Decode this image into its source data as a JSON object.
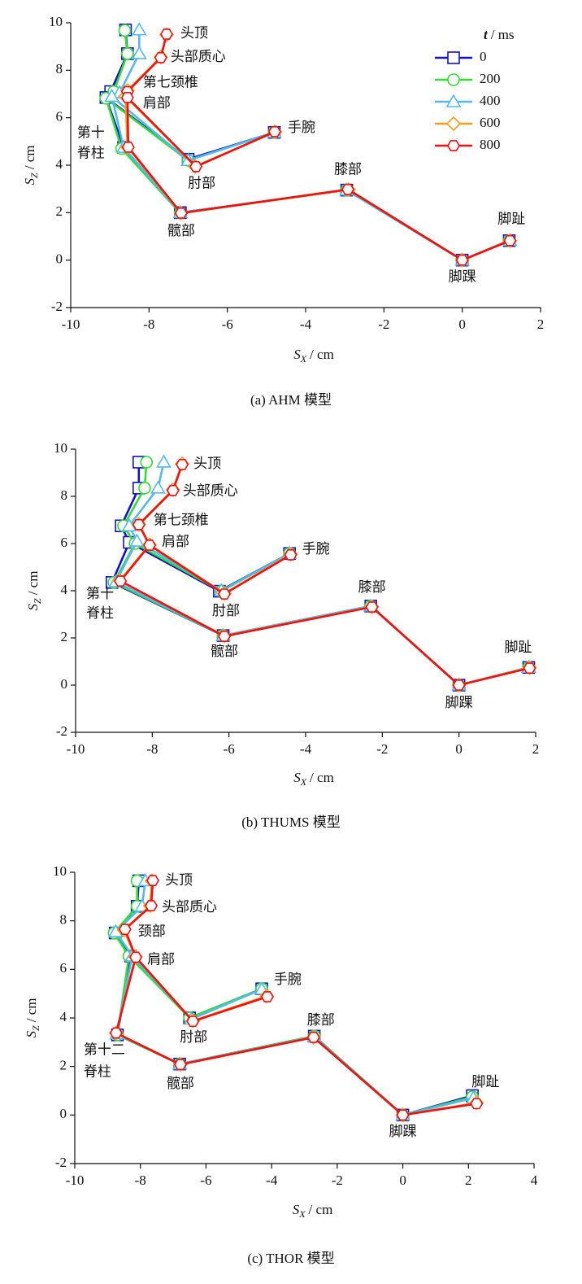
{
  "chart_data": [
    {
      "type": "line",
      "caption": "(a) AHM 模型",
      "xlabel_symbol": "S",
      "xlabel_sub": "X",
      "xlabel_unit": "/ cm",
      "ylabel_symbol": "S",
      "ylabel_sub": "Z",
      "ylabel_unit": "/ cm",
      "xlim": [
        -10,
        2
      ],
      "xticks": [
        -10,
        -8,
        -6,
        -4,
        -2,
        0,
        2
      ],
      "ylim": [
        -2,
        10
      ],
      "yticks": [
        -2,
        0,
        2,
        4,
        6,
        8,
        10
      ],
      "legend_title_symbol": "t",
      "legend_title_unit": "/ ms",
      "legend": "upper right",
      "point_labels": [
        "头顶",
        "头部质心",
        "第七颈椎",
        "肩部",
        [
          "第十",
          "脊柱"
        ],
        "髋部",
        "膝部",
        "脚踝",
        "脚趾",
        "肘部",
        "手腕"
      ],
      "series": [
        {
          "name": "0",
          "color": "#1111cc",
          "marker": "square",
          "x": [
            -8.6,
            -8.55,
            -8.98,
            -9.1,
            -8.65,
            -7.2,
            -2.95,
            0,
            1.2,
            -7.0,
            -4.8
          ],
          "values": [
            9.7,
            8.7,
            7.1,
            6.85,
            4.75,
            2.0,
            2.95,
            0,
            0.82,
            4.25,
            5.38
          ]
        },
        {
          "name": "200",
          "color": "#33dd33",
          "marker": "circle",
          "x": [
            -8.62,
            -8.55,
            -8.9,
            -9.1,
            -8.7,
            -7.2,
            -2.95,
            0,
            1.2,
            -7.0,
            -4.8
          ],
          "values": [
            9.68,
            8.7,
            7.1,
            6.82,
            4.7,
            1.98,
            2.95,
            0,
            0.82,
            4.2,
            5.38
          ]
        },
        {
          "name": "400",
          "color": "#55b8ee",
          "marker": "triangle",
          "x": [
            -8.25,
            -8.25,
            -8.75,
            -8.95,
            -8.65,
            -7.2,
            -2.95,
            0,
            1.22,
            -7.0,
            -4.8
          ],
          "values": [
            9.7,
            8.7,
            7.05,
            6.9,
            4.75,
            2.0,
            2.95,
            0,
            0.82,
            4.2,
            5.38
          ]
        },
        {
          "name": "600",
          "color": "#f39c1f",
          "marker": "diamond",
          "x": [
            -7.55,
            -7.7,
            -8.55,
            -8.6,
            -8.55,
            -7.18,
            -2.9,
            0,
            1.22,
            -6.82,
            -4.78
          ],
          "values": [
            9.5,
            8.55,
            7.15,
            6.9,
            4.76,
            1.98,
            2.97,
            0,
            0.82,
            3.95,
            5.4
          ]
        },
        {
          "name": "800",
          "color": "#ee1111",
          "marker": "hexagon",
          "x": [
            -7.55,
            -7.7,
            -8.55,
            -8.55,
            -8.53,
            -7.18,
            -2.92,
            0,
            1.22,
            -6.8,
            -4.79
          ],
          "values": [
            9.52,
            8.53,
            7.1,
            6.85,
            4.76,
            1.98,
            2.98,
            0,
            0.82,
            3.94,
            5.41
          ]
        }
      ]
    },
    {
      "type": "line",
      "caption": "(b) THUMS 模型",
      "xlabel_symbol": "S",
      "xlabel_sub": "X",
      "xlabel_unit": "/ cm",
      "ylabel_symbol": "S",
      "ylabel_sub": "Z",
      "ylabel_unit": "/ cm",
      "xlim": [
        -10,
        2
      ],
      "xticks": [
        -10,
        -8,
        -6,
        -4,
        -2,
        0,
        2
      ],
      "ylim": [
        -2,
        10
      ],
      "yticks": [
        -2,
        0,
        2,
        4,
        6,
        8,
        10
      ],
      "point_labels": [
        "头顶",
        "头部质心",
        "第七颈椎",
        "肩部",
        [
          "第十",
          "脊柱"
        ],
        "髋部",
        "膝部",
        "脚踝",
        "脚趾",
        "肘部",
        "手腕"
      ],
      "series": [
        {
          "color": "#1111cc",
          "marker": "square",
          "x": [
            -8.35,
            -8.35,
            -8.81,
            -8.6,
            -9.05,
            -6.15,
            -2.3,
            0,
            1.82,
            -6.25,
            -4.42
          ],
          "values": [
            9.45,
            8.35,
            6.75,
            6.05,
            4.35,
            2.1,
            3.35,
            0,
            0.75,
            3.98,
            5.58
          ]
        },
        {
          "color": "#33dd33",
          "marker": "circle",
          "x": [
            -8.15,
            -8.2,
            -8.75,
            -8.45,
            -9.0,
            -6.15,
            -2.3,
            0,
            1.82,
            -6.2,
            -4.42
          ],
          "values": [
            9.45,
            8.35,
            6.75,
            6.0,
            4.35,
            2.1,
            3.35,
            0,
            0.75,
            3.98,
            5.58
          ]
        },
        {
          "color": "#55b8ee",
          "marker": "triangle",
          "x": [
            -7.7,
            -7.85,
            -8.6,
            -8.4,
            -8.95,
            -6.15,
            -2.3,
            0,
            1.82,
            -6.2,
            -4.42
          ],
          "values": [
            9.45,
            8.35,
            6.75,
            6.1,
            4.38,
            2.1,
            3.35,
            0,
            0.75,
            4.0,
            5.58
          ]
        },
        {
          "color": "#f39c1f",
          "marker": "diamond",
          "x": [
            -7.22,
            -7.46,
            -8.35,
            -8.07,
            -8.85,
            -6.12,
            -2.27,
            0,
            1.84,
            -6.12,
            -4.39
          ],
          "values": [
            9.38,
            8.28,
            6.82,
            5.95,
            4.43,
            2.08,
            3.32,
            0,
            0.74,
            3.88,
            5.55
          ]
        },
        {
          "color": "#ee1111",
          "marker": "hexagon",
          "x": [
            -7.22,
            -7.46,
            -8.35,
            -8.07,
            -8.83,
            -6.12,
            -2.27,
            0,
            1.84,
            -6.12,
            -4.39
          ],
          "values": [
            9.35,
            8.25,
            6.8,
            5.93,
            4.41,
            2.07,
            3.31,
            0,
            0.72,
            3.86,
            5.52
          ]
        }
      ]
    },
    {
      "type": "line",
      "caption": "(c) THOR 模型",
      "xlabel_symbol": "S",
      "xlabel_sub": "X",
      "xlabel_unit": "/ cm",
      "ylabel_symbol": "S",
      "ylabel_sub": "Z",
      "ylabel_unit": "/ cm",
      "xlim": [
        -10,
        4
      ],
      "xticks": [
        -10,
        -8,
        -6,
        -4,
        -2,
        0,
        2,
        4
      ],
      "ylim": [
        -2,
        10
      ],
      "yticks": [
        -2,
        0,
        2,
        4,
        6,
        8,
        10
      ],
      "point_labels": [
        "头顶",
        "头部质心",
        "颈部",
        "肩部",
        [
          "第十二",
          "脊柱"
        ],
        "髋部",
        "膝部",
        "脚踝",
        "脚趾",
        "肘部",
        "手腕"
      ],
      "series": [
        {
          "color": "#1111cc",
          "marker": "square",
          "x": [
            -8.05,
            -8.1,
            -8.77,
            -8.3,
            -8.7,
            -6.8,
            -2.7,
            0,
            2.12,
            -6.5,
            -4.3
          ],
          "values": [
            9.65,
            8.6,
            7.5,
            6.55,
            3.3,
            2.1,
            3.25,
            0,
            0.8,
            4.0,
            5.2
          ]
        },
        {
          "color": "#33dd33",
          "marker": "circle",
          "x": [
            -8.1,
            -8.1,
            -8.8,
            -8.35,
            -8.7,
            -6.8,
            -2.7,
            0,
            2.12,
            -6.5,
            -4.3
          ],
          "values": [
            9.65,
            8.6,
            7.5,
            6.55,
            3.3,
            2.1,
            3.25,
            0,
            0.75,
            4.0,
            5.2
          ]
        },
        {
          "color": "#55b8ee",
          "marker": "triangle",
          "x": [
            -7.85,
            -7.95,
            -8.75,
            -8.25,
            -8.72,
            -6.8,
            -2.7,
            0,
            2.15,
            -6.45,
            -4.3
          ],
          "values": [
            9.65,
            8.6,
            7.55,
            6.55,
            3.35,
            2.1,
            3.22,
            0,
            0.7,
            3.95,
            5.18
          ]
        },
        {
          "color": "#f39c1f",
          "marker": "diamond",
          "x": [
            -7.65,
            -7.7,
            -8.5,
            -8.15,
            -8.74,
            -6.78,
            -2.72,
            0,
            2.25,
            -6.4,
            -4.15
          ],
          "values": [
            9.65,
            8.62,
            7.62,
            6.52,
            3.38,
            2.08,
            3.2,
            0,
            0.5,
            3.88,
            4.9
          ]
        },
        {
          "color": "#ee1111",
          "marker": "hexagon",
          "x": [
            -7.62,
            -7.67,
            -8.47,
            -8.14,
            -8.74,
            -6.78,
            -2.72,
            0,
            2.25,
            -6.4,
            -4.13
          ],
          "values": [
            9.66,
            8.62,
            7.65,
            6.5,
            3.38,
            2.08,
            3.2,
            0,
            0.47,
            3.86,
            4.87
          ]
        }
      ]
    }
  ]
}
